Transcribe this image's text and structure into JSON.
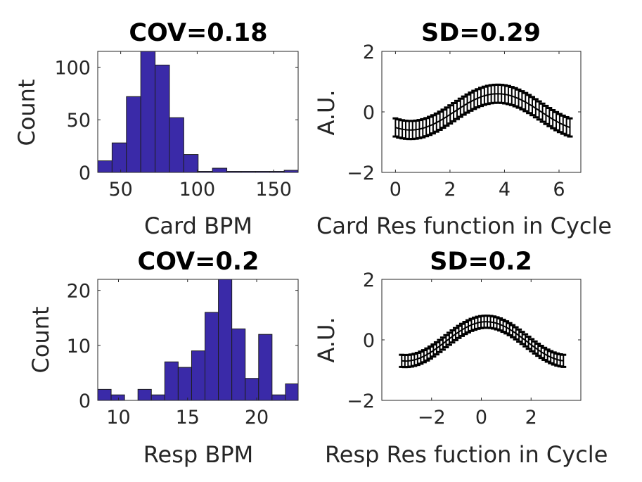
{
  "chart_data": [
    {
      "id": "p1",
      "type": "bar",
      "subtype": "histogram",
      "title": "COV=0.18",
      "xlabel": "Card BPM",
      "ylabel": "Count",
      "xlim": [
        35,
        166
      ],
      "ylim": [
        0,
        115
      ],
      "xticks": [
        50,
        100,
        150
      ],
      "yticks": [
        0,
        50,
        100
      ],
      "bin_edges": [
        35,
        44.375,
        53.75,
        63.125,
        72.5,
        81.875,
        91.25,
        100.625,
        110,
        119.375,
        128.75,
        138.125,
        147.5,
        156.875,
        166.25
      ],
      "values": [
        11,
        28,
        72,
        115,
        102,
        52,
        17,
        1,
        4,
        1,
        1,
        1,
        1,
        2
      ],
      "colors": {
        "face": "#3a2aa8",
        "edge": "#1e1e1e"
      }
    },
    {
      "id": "p2",
      "type": "line",
      "subtype": "errorbar",
      "title": "SD=0.29",
      "xlabel": "Card Res function in Cycle",
      "ylabel": "A.U.",
      "xlim": [
        -0.5,
        6.8
      ],
      "ylim": [
        -2,
        2
      ],
      "xticks": [
        0,
        2,
        4,
        6
      ],
      "yticks": [
        -2,
        0,
        2
      ],
      "x_range": [
        0,
        6.4
      ],
      "point_count": 52,
      "center": 0,
      "amplitude": 0.6,
      "peak_x": 3.75,
      "error_halfwidth": 0.3,
      "colors": {
        "line": "#000000"
      }
    },
    {
      "id": "p3",
      "type": "bar",
      "subtype": "histogram",
      "title": "COV=0.2",
      "xlabel": "Resp BPM",
      "ylabel": "Count",
      "xlim": [
        8.5,
        23
      ],
      "ylim": [
        0,
        22
      ],
      "xticks": [
        10,
        15,
        20
      ],
      "yticks": [
        0,
        10,
        20
      ],
      "bin_edges": [
        8.5,
        9.47,
        10.44,
        11.41,
        12.38,
        13.35,
        14.32,
        15.29,
        16.26,
        17.23,
        18.2,
        19.17,
        20.14,
        21.11,
        22.08,
        23.05
      ],
      "values": [
        2,
        1,
        0,
        2,
        1,
        7,
        6,
        9,
        16,
        22,
        13,
        4,
        12,
        1,
        3
      ],
      "colors": {
        "face": "#3a2aa8",
        "edge": "#1e1e1e"
      }
    },
    {
      "id": "p4",
      "type": "line",
      "subtype": "errorbar",
      "title": "SD=0.2",
      "xlabel": "Resp Res fuction in Cycle",
      "ylabel": "A.U.",
      "xlim": [
        -4,
        4
      ],
      "ylim": [
        -2,
        2
      ],
      "xticks": [
        -2,
        0,
        2
      ],
      "yticks": [
        -2,
        0,
        2
      ],
      "x_range": [
        -3.2,
        3.3
      ],
      "point_count": 52,
      "center": -0.05,
      "amplitude": 0.65,
      "peak_x": 0.2,
      "error_halfwidth": 0.2,
      "colors": {
        "line": "#000000"
      }
    }
  ]
}
